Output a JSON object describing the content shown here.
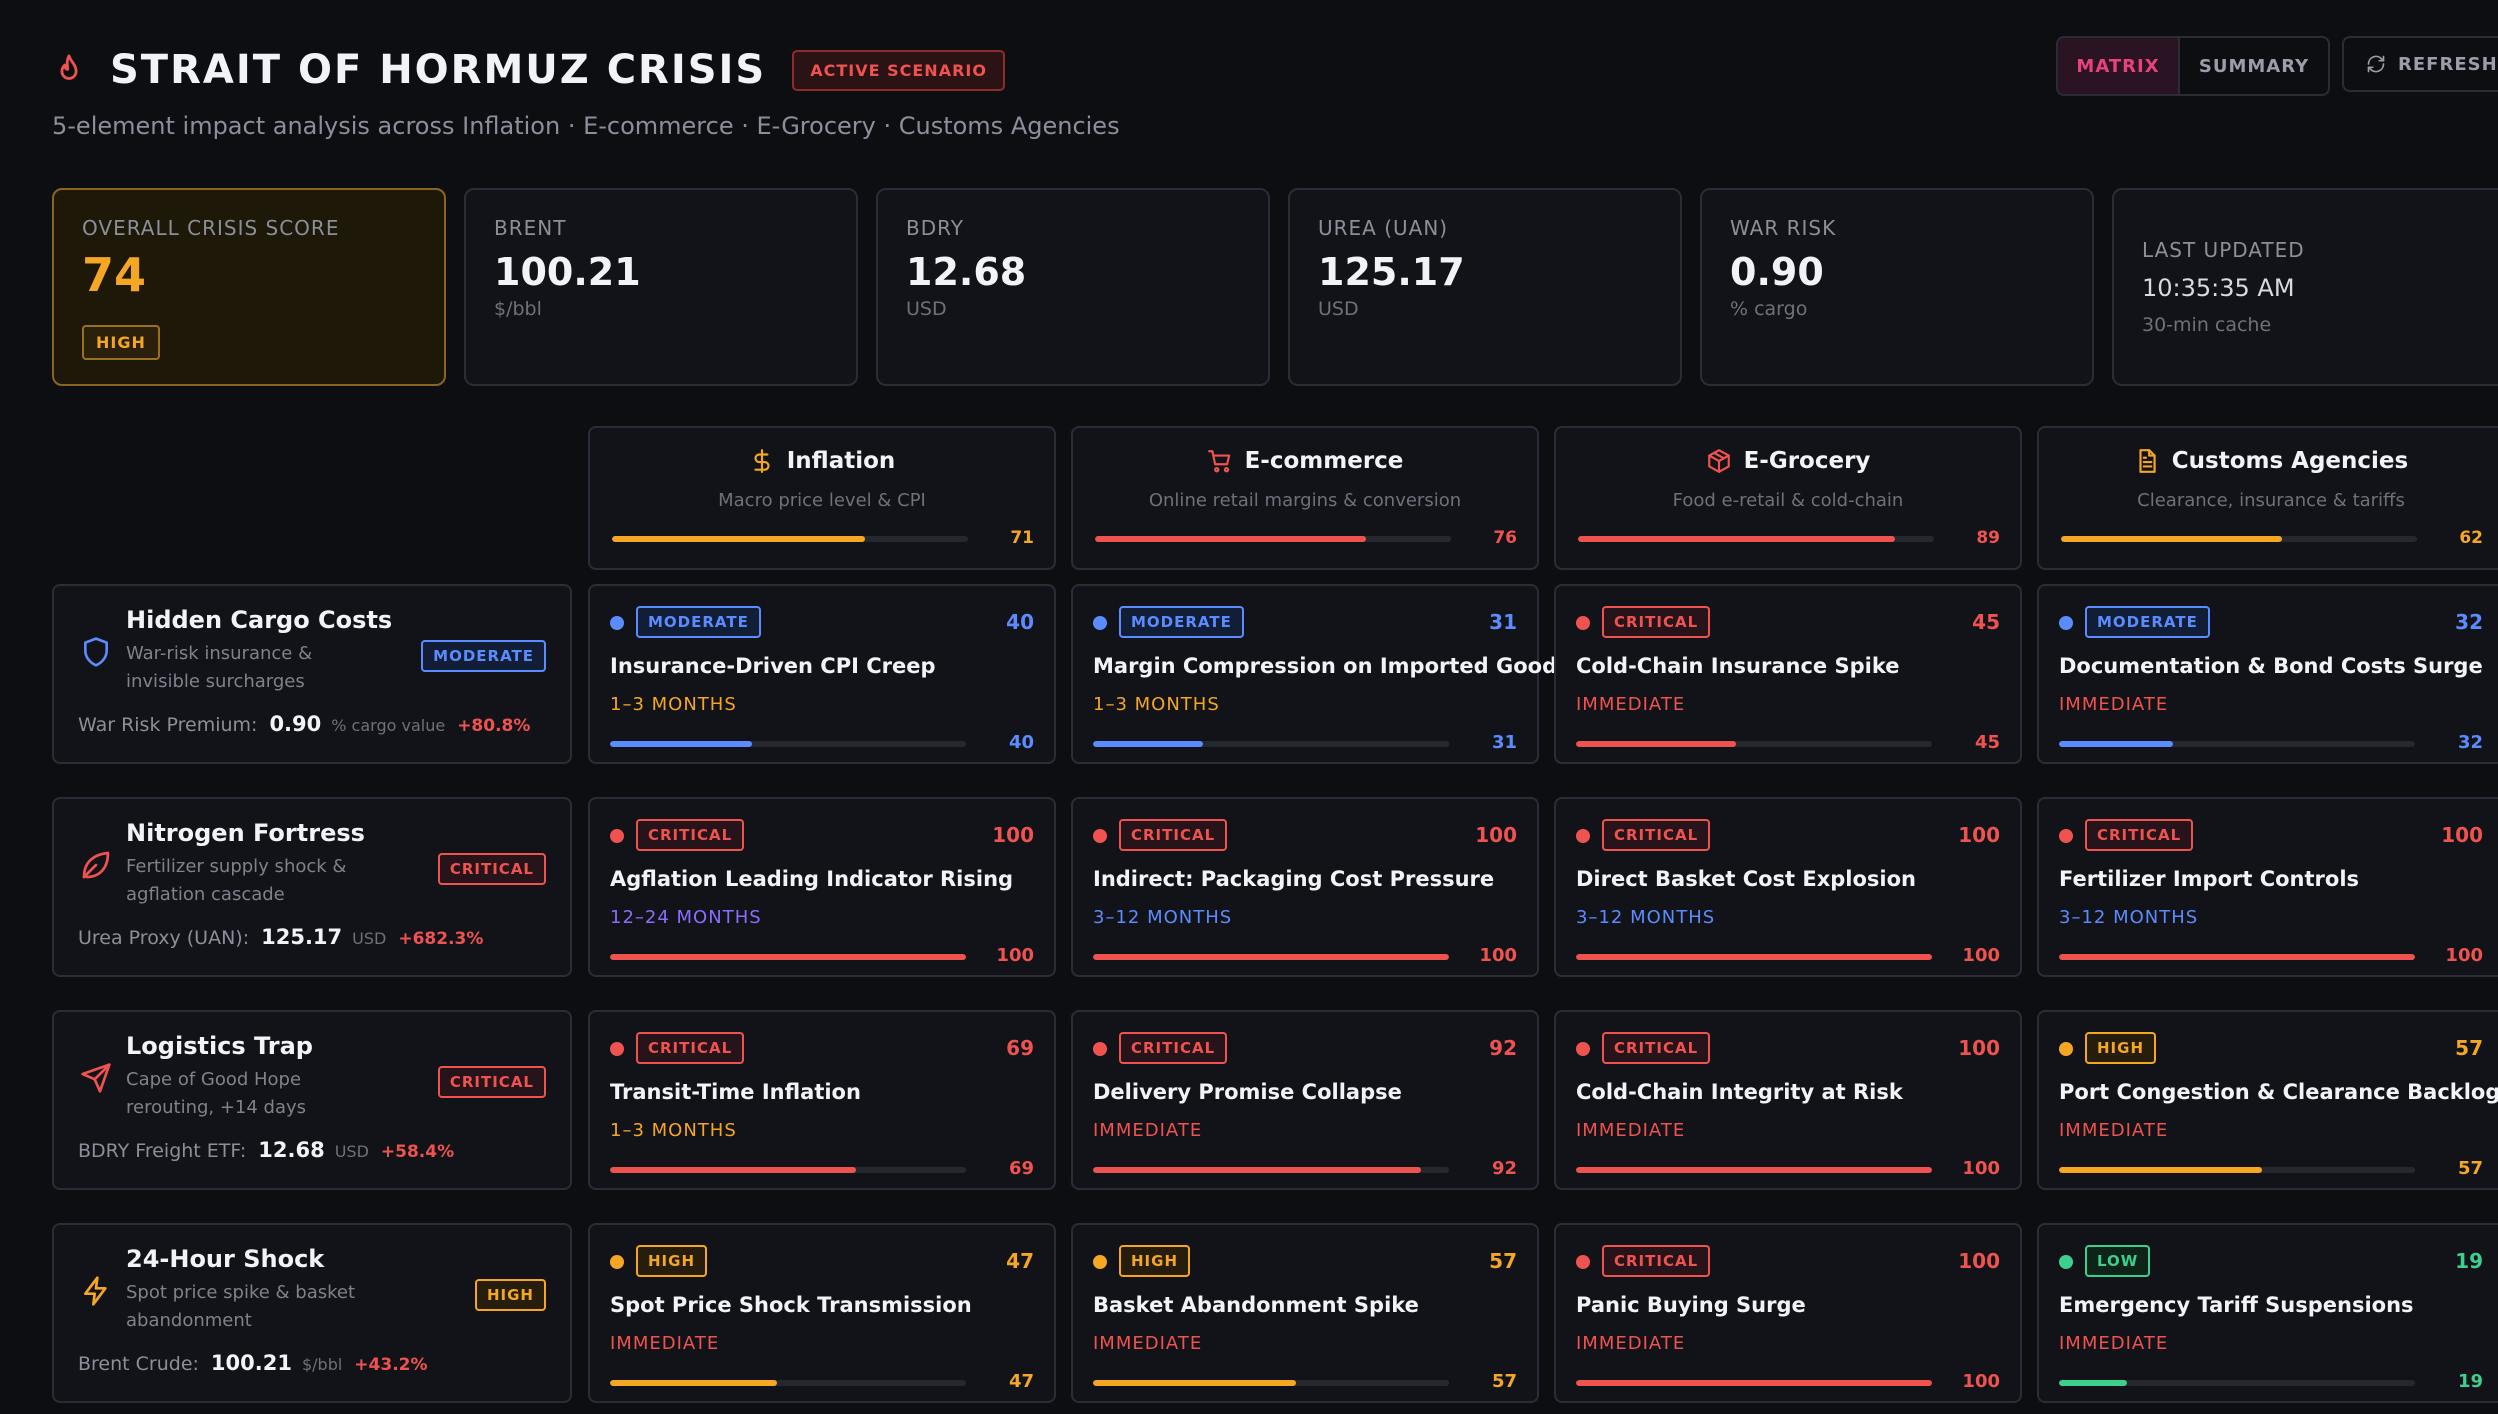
{
  "header": {
    "title": "STRAIT OF HORMUZ CRISIS",
    "badge": "ACTIVE SCENARIO",
    "subtitle": "5-element impact analysis across Inflation · E-commerce · E-Grocery · Customs Agencies",
    "view_toggle": {
      "matrix": "MATRIX",
      "summary": "SUMMARY",
      "selected": "MATRIX"
    },
    "refresh_label": "REFRESH"
  },
  "colors": {
    "critical": "#ef5350",
    "moderate": "#5b8cff",
    "high": "#f5a623",
    "low": "#3ccf8e",
    "accent_pink": "#e8427a"
  },
  "kpis": {
    "score": {
      "label": "OVERALL CRISIS SCORE",
      "value": "74",
      "badge": "HIGH"
    },
    "brent": {
      "label": "BRENT",
      "value": "100.21",
      "unit": "$/bbl"
    },
    "bdry": {
      "label": "BDRY",
      "value": "12.68",
      "unit": "USD"
    },
    "urea": {
      "label": "UREA (UAN)",
      "value": "125.17",
      "unit": "USD"
    },
    "war": {
      "label": "WAR RISK",
      "value": "0.90",
      "unit": "% cargo"
    },
    "updated": {
      "label": "LAST UPDATED",
      "value": "10:35:35 AM",
      "unit": "30-min cache"
    }
  },
  "columns": [
    {
      "icon": "dollar-icon",
      "title": "Inflation",
      "sub": "Macro price level & CPI",
      "score": "71",
      "level": 71,
      "color": "#f5a623"
    },
    {
      "icon": "cart-icon",
      "title": "E-commerce",
      "sub": "Online retail margins & conversion",
      "score": "76",
      "level": 76,
      "color": "#ef5350"
    },
    {
      "icon": "box-icon",
      "title": "E-Grocery",
      "sub": "Food e-retail & cold-chain",
      "score": "89",
      "level": 89,
      "color": "#ef5350"
    },
    {
      "icon": "document-icon",
      "title": "Customs Agencies",
      "sub": "Clearance, insurance & tariffs",
      "score": "62",
      "level": 62,
      "color": "#f5a623"
    }
  ],
  "rows": [
    {
      "icon": "shield-icon",
      "title": "Hidden Cargo Costs",
      "desc": "War-risk insurance & invisible surcharges",
      "badge": "MODERATE",
      "sev": "moderate",
      "metric_label": "War Risk Premium:",
      "metric_value": "0.90",
      "metric_unit": "% cargo value",
      "metric_change": "+80.8%"
    },
    {
      "icon": "leaf-icon",
      "title": "Nitrogen Fortress",
      "desc": "Fertilizer supply shock & agflation cascade",
      "badge": "CRITICAL",
      "sev": "critical",
      "metric_label": "Urea Proxy (UAN):",
      "metric_value": "125.17",
      "metric_unit": "USD",
      "metric_change": "+682.3%"
    },
    {
      "icon": "send-icon",
      "title": "Logistics Trap",
      "desc": "Cape of Good Hope rerouting, +14 days",
      "badge": "CRITICAL",
      "sev": "critical",
      "metric_label": "BDRY Freight ETF:",
      "metric_value": "12.68",
      "metric_unit": "USD",
      "metric_change": "+58.4%"
    },
    {
      "icon": "bolt-icon",
      "title": "24-Hour Shock",
      "desc": "Spot price spike & basket abandonment",
      "badge": "HIGH",
      "sev": "high",
      "metric_label": "Brent Crude:",
      "metric_value": "100.21",
      "metric_unit": "$/bbl",
      "metric_change": "+43.2%"
    }
  ],
  "cells": [
    [
      {
        "badge": "MODERATE",
        "sev": "moderate",
        "score": "40",
        "level": 40,
        "title": "Insurance-Driven CPI Creep",
        "timeline": "1–3 MONTHS",
        "tl_color": "#f5a623"
      },
      {
        "badge": "MODERATE",
        "sev": "moderate",
        "score": "31",
        "level": 31,
        "title": "Margin Compression on Imported Goods",
        "timeline": "1–3 MONTHS",
        "tl_color": "#f5a623"
      },
      {
        "badge": "CRITICAL",
        "sev": "critical",
        "score": "45",
        "level": 45,
        "title": "Cold-Chain Insurance Spike",
        "timeline": "IMMEDIATE",
        "tl_color": "#ef5350"
      },
      {
        "badge": "MODERATE",
        "sev": "moderate",
        "score": "32",
        "level": 32,
        "title": "Documentation & Bond Costs Surge",
        "timeline": "IMMEDIATE",
        "tl_color": "#ef5350"
      }
    ],
    [
      {
        "badge": "CRITICAL",
        "sev": "critical",
        "score": "100",
        "level": 100,
        "title": "Agflation Leading Indicator Rising",
        "timeline": "12–24 MONTHS",
        "tl_color": "#8b6cff"
      },
      {
        "badge": "CRITICAL",
        "sev": "critical",
        "score": "100",
        "level": 100,
        "title": "Indirect: Packaging Cost Pressure",
        "timeline": "3–12 MONTHS",
        "tl_color": "#5b8cff"
      },
      {
        "badge": "CRITICAL",
        "sev": "critical",
        "score": "100",
        "level": 100,
        "title": "Direct Basket Cost Explosion",
        "timeline": "3–12 MONTHS",
        "tl_color": "#5b8cff"
      },
      {
        "badge": "CRITICAL",
        "sev": "critical",
        "score": "100",
        "level": 100,
        "title": "Fertilizer Import Controls",
        "timeline": "3–12 MONTHS",
        "tl_color": "#5b8cff"
      }
    ],
    [
      {
        "badge": "CRITICAL",
        "sev": "critical",
        "score": "69",
        "level": 69,
        "title": "Transit-Time Inflation",
        "timeline": "1–3 MONTHS",
        "tl_color": "#f5a623"
      },
      {
        "badge": "CRITICAL",
        "sev": "critical",
        "score": "92",
        "level": 92,
        "title": "Delivery Promise Collapse",
        "timeline": "IMMEDIATE",
        "tl_color": "#ef5350"
      },
      {
        "badge": "CRITICAL",
        "sev": "critical",
        "score": "100",
        "level": 100,
        "title": "Cold-Chain Integrity at Risk",
        "timeline": "IMMEDIATE",
        "tl_color": "#ef5350"
      },
      {
        "badge": "HIGH",
        "sev": "high",
        "score": "57",
        "level": 57,
        "title": "Port Congestion & Clearance Backlog",
        "timeline": "IMMEDIATE",
        "tl_color": "#ef5350"
      }
    ],
    [
      {
        "badge": "HIGH",
        "sev": "high",
        "score": "47",
        "level": 47,
        "title": "Spot Price Shock Transmission",
        "timeline": "IMMEDIATE",
        "tl_color": "#ef5350"
      },
      {
        "badge": "HIGH",
        "sev": "high",
        "score": "57",
        "level": 57,
        "title": "Basket Abandonment Spike",
        "timeline": "IMMEDIATE",
        "tl_color": "#ef5350"
      },
      {
        "badge": "CRITICAL",
        "sev": "critical",
        "score": "100",
        "level": 100,
        "title": "Panic Buying Surge",
        "timeline": "IMMEDIATE",
        "tl_color": "#ef5350"
      },
      {
        "badge": "LOW",
        "sev": "low",
        "score": "19",
        "level": 19,
        "title": "Emergency Tariff Suspensions",
        "timeline": "IMMEDIATE",
        "tl_color": "#ef5350"
      }
    ]
  ]
}
